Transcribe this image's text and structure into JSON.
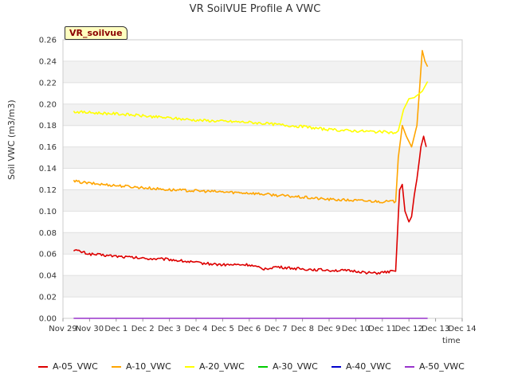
{
  "chart_data": {
    "type": "line",
    "title": "VR SoilVUE Profile A VWC",
    "xlabel": "time",
    "ylabel": "Soil VWC (m3/m3)",
    "badge": "VR_soilvue",
    "ylim": [
      0,
      0.26
    ],
    "xlim": [
      0,
      15
    ],
    "yticks": [
      "0.00",
      "0.02",
      "0.04",
      "0.06",
      "0.08",
      "0.10",
      "0.12",
      "0.14",
      "0.16",
      "0.18",
      "0.20",
      "0.22",
      "0.24",
      "0.26"
    ],
    "xticks": [
      "Nov 29",
      "Nov 30",
      "Dec 1",
      "Dec 2",
      "Dec 3",
      "Dec 4",
      "Dec 5",
      "Dec 6",
      "Dec 7",
      "Dec 8",
      "Dec 9",
      "Dec 10",
      "Dec 11",
      "Dec 12",
      "Dec 13",
      "Dec 14"
    ],
    "grid": true,
    "legend_position": "bottom",
    "series": [
      {
        "name": "A-05_VWC",
        "color": "#dd0000",
        "x": [
          0.4,
          1,
          2,
          3,
          4,
          5,
          6,
          7,
          7.5,
          8,
          9,
          10,
          11,
          11.7,
          12.5,
          12.55,
          12.65,
          12.75,
          12.85,
          13,
          13.1,
          13.2,
          13.3,
          13.45,
          13.55,
          13.65
        ],
        "y": [
          0.064,
          0.06,
          0.058,
          0.056,
          0.055,
          0.052,
          0.05,
          0.05,
          0.046,
          0.048,
          0.046,
          0.045,
          0.044,
          0.042,
          0.044,
          0.07,
          0.12,
          0.125,
          0.1,
          0.09,
          0.095,
          0.115,
          0.13,
          0.16,
          0.17,
          0.16
        ]
      },
      {
        "name": "A-10_VWC",
        "color": "#ffa500",
        "x": [
          0.4,
          1,
          2,
          3,
          4,
          5,
          6,
          7,
          8,
          9,
          10,
          11,
          12,
          12.5,
          12.6,
          12.75,
          12.9,
          13.1,
          13.3,
          13.5,
          13.6,
          13.7
        ],
        "y": [
          0.128,
          0.126,
          0.124,
          0.122,
          0.12,
          0.119,
          0.118,
          0.117,
          0.115,
          0.113,
          0.111,
          0.11,
          0.109,
          0.109,
          0.15,
          0.18,
          0.17,
          0.16,
          0.18,
          0.25,
          0.24,
          0.235
        ]
      },
      {
        "name": "A-20_VWC",
        "color": "#ffff00",
        "x": [
          0.4,
          1,
          2,
          3,
          4,
          5,
          6,
          7,
          8,
          9,
          10,
          11,
          12,
          12.5,
          12.6,
          12.8,
          13,
          13.2,
          13.5,
          13.7
        ],
        "y": [
          0.193,
          0.192,
          0.191,
          0.189,
          0.187,
          0.185,
          0.184,
          0.183,
          0.181,
          0.179,
          0.176,
          0.175,
          0.174,
          0.173,
          0.175,
          0.195,
          0.205,
          0.206,
          0.212,
          0.221
        ]
      },
      {
        "name": "A-30_VWC",
        "color": "#00cc00",
        "x": [],
        "y": []
      },
      {
        "name": "A-40_VWC",
        "color": "#0000cc",
        "x": [],
        "y": []
      },
      {
        "name": "A-50_VWC",
        "color": "#9933cc",
        "x": [
          0.4,
          13.7
        ],
        "y": [
          0.0,
          0.0
        ]
      }
    ]
  }
}
